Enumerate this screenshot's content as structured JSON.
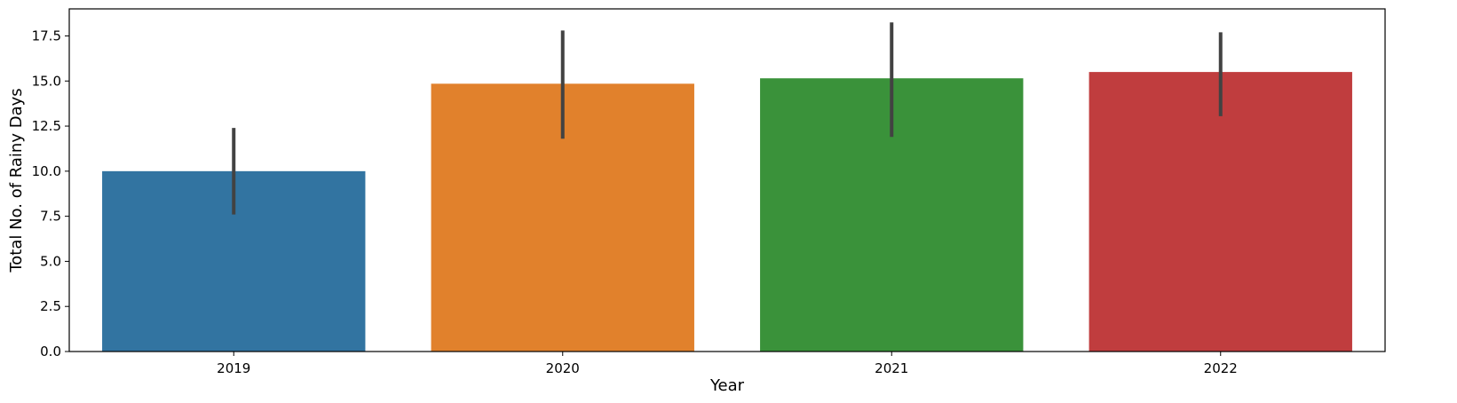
{
  "chart_data": {
    "type": "bar",
    "xlabel": "Year",
    "ylabel": "Total No. of Rainy Days",
    "categories": [
      "2019",
      "2020",
      "2021",
      "2022"
    ],
    "values": [
      10.0,
      14.85,
      15.15,
      15.5
    ],
    "error_bars": [
      {
        "low": 7.6,
        "high": 12.4
      },
      {
        "low": 11.8,
        "high": 17.8
      },
      {
        "low": 11.9,
        "high": 18.25
      },
      {
        "low": 13.05,
        "high": 17.7
      }
    ],
    "colors": [
      "#3274a1",
      "#e1812c",
      "#3a923a",
      "#c03d3e"
    ],
    "error_bar_color": "#424242",
    "ylim": [
      0,
      19.0
    ],
    "yticks": [
      {
        "value": 0,
        "label": "0.0"
      },
      {
        "value": 2.5,
        "label": "2.5"
      },
      {
        "value": 5,
        "label": "5.0"
      },
      {
        "value": 7.5,
        "label": "7.5"
      },
      {
        "value": 10,
        "label": "10.0"
      },
      {
        "value": 12.5,
        "label": "12.5"
      },
      {
        "value": 15,
        "label": "15.0"
      },
      {
        "value": 17.5,
        "label": "17.5"
      }
    ],
    "grid": false,
    "legend": "none"
  }
}
